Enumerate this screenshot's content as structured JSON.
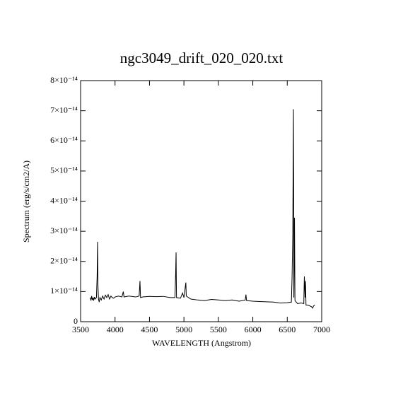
{
  "chart_data": {
    "type": "line",
    "title": "ngc3049_drift_020_020.txt",
    "xlabel": "WAVELENGTH (Angstrom)",
    "ylabel": "Spectrum (erg/s/cm2/A)",
    "color": "#000000",
    "xlim": [
      3500,
      7000
    ],
    "xticks": [
      3500,
      4000,
      4500,
      5000,
      5500,
      6000,
      6500,
      7000
    ],
    "ylim": [
      0,
      8e-14
    ],
    "yticks": [
      0,
      {
        "value": 1e-14,
        "label": "1×10⁻¹⁴"
      },
      {
        "value": 2e-14,
        "label": "2×10⁻¹⁴"
      },
      {
        "value": 3e-14,
        "label": "3×10⁻¹⁴"
      },
      {
        "value": 4e-14,
        "label": "4×10⁻¹⁴"
      },
      {
        "value": 5e-14,
        "label": "5×10⁻¹⁴"
      },
      {
        "value": 6e-14,
        "label": "6×10⁻¹⁴"
      },
      {
        "value": 7e-14,
        "label": "7×10⁻¹⁴"
      },
      {
        "value": 8e-14,
        "label": "8×10⁻¹⁴"
      }
    ],
    "x": [
      3640,
      3650,
      3660,
      3670,
      3680,
      3690,
      3700,
      3710,
      3730,
      3740,
      3746,
      3752,
      3760,
      3770,
      3780,
      3800,
      3820,
      3840,
      3860,
      3880,
      3900,
      3920,
      3940,
      3960,
      3980,
      4000,
      4050,
      4100,
      4120,
      4130,
      4200,
      4300,
      4350,
      4362,
      4370,
      4400,
      4500,
      4600,
      4700,
      4800,
      4870,
      4880,
      4886,
      4892,
      4950,
      4980,
      5000,
      5028,
      5034,
      5100,
      5200,
      5300,
      5400,
      5500,
      5600,
      5700,
      5800,
      5890,
      5900,
      5910,
      6000,
      6100,
      6200,
      6300,
      6400,
      6500,
      6560,
      6570,
      6580,
      6590,
      6596,
      6605,
      6612,
      6650,
      6700,
      6740,
      6748,
      6760,
      6765,
      6772,
      6800,
      6850,
      6870,
      6880,
      6900
    ],
    "values": [
      8e-15,
      7e-15,
      8.5e-15,
      7.2e-15,
      8e-15,
      7e-15,
      8.2e-15,
      7.5e-15,
      8e-15,
      1.5e-14,
      2.65e-14,
      1.2e-14,
      7.5e-15,
      6.5e-15,
      8e-15,
      7.2e-15,
      8.5e-15,
      7.5e-15,
      8.8e-15,
      8e-15,
      9e-15,
      7.5e-15,
      8.5e-15,
      8e-15,
      7.8e-15,
      8.2e-15,
      8.5e-15,
      8.2e-15,
      1e-14,
      8.2e-15,
      8.5e-15,
      8.2e-15,
      8.5e-15,
      1.35e-14,
      8e-15,
      8.2e-15,
      8.4e-15,
      8.3e-15,
      8.4e-15,
      8e-15,
      8e-15,
      1.6e-14,
      2.3e-14,
      8e-15,
      7.8e-15,
      9.5e-15,
      8e-15,
      1.3e-14,
      8.5e-15,
      7.5e-15,
      7.2e-15,
      7e-15,
      7.4e-15,
      7.2e-15,
      7e-15,
      7.2e-15,
      6.8e-15,
      7.2e-15,
      9e-15,
      7e-15,
      6.8e-15,
      6.7e-15,
      6.6e-15,
      6.5e-15,
      6.2e-15,
      6.3e-15,
      6.5e-15,
      1.5e-14,
      2.9e-14,
      7.05e-14,
      8e-15,
      3.45e-14,
      7e-15,
      6e-15,
      6.2e-15,
      6e-15,
      1.5e-14,
      8e-15,
      1.35e-14,
      5.5e-15,
      5.5e-15,
      5e-15,
      4.5e-15,
      5.2e-15,
      5.5e-15
    ]
  }
}
